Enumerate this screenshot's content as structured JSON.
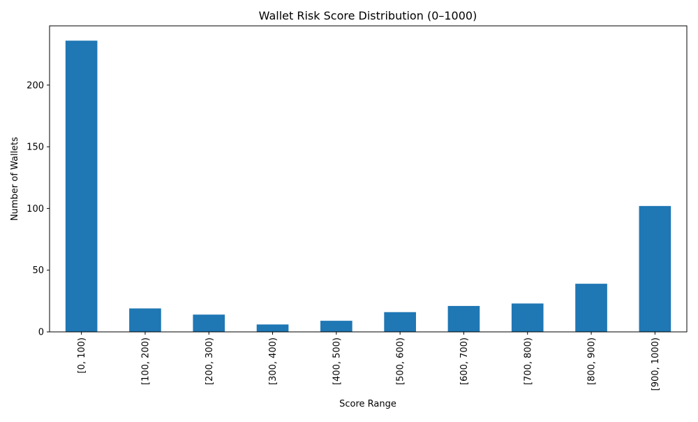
{
  "chart_data": {
    "type": "bar",
    "title": "Wallet Risk Score Distribution (0–1000)",
    "xlabel": "Score Range",
    "ylabel": "Number of Wallets",
    "categories": [
      "[0, 100)",
      "[100, 200)",
      "[200, 300)",
      "[300, 400)",
      "[400, 500)",
      "[500, 600)",
      "[600, 700)",
      "[700, 800)",
      "[800, 900)",
      "[900, 1000)"
    ],
    "values": [
      236,
      19,
      14,
      6,
      9,
      16,
      21,
      23,
      39,
      102
    ],
    "ylim": [
      0,
      248
    ],
    "yticks": [
      0,
      50,
      100,
      150,
      200
    ],
    "grid": false,
    "bar_color": "#1f77b4"
  }
}
